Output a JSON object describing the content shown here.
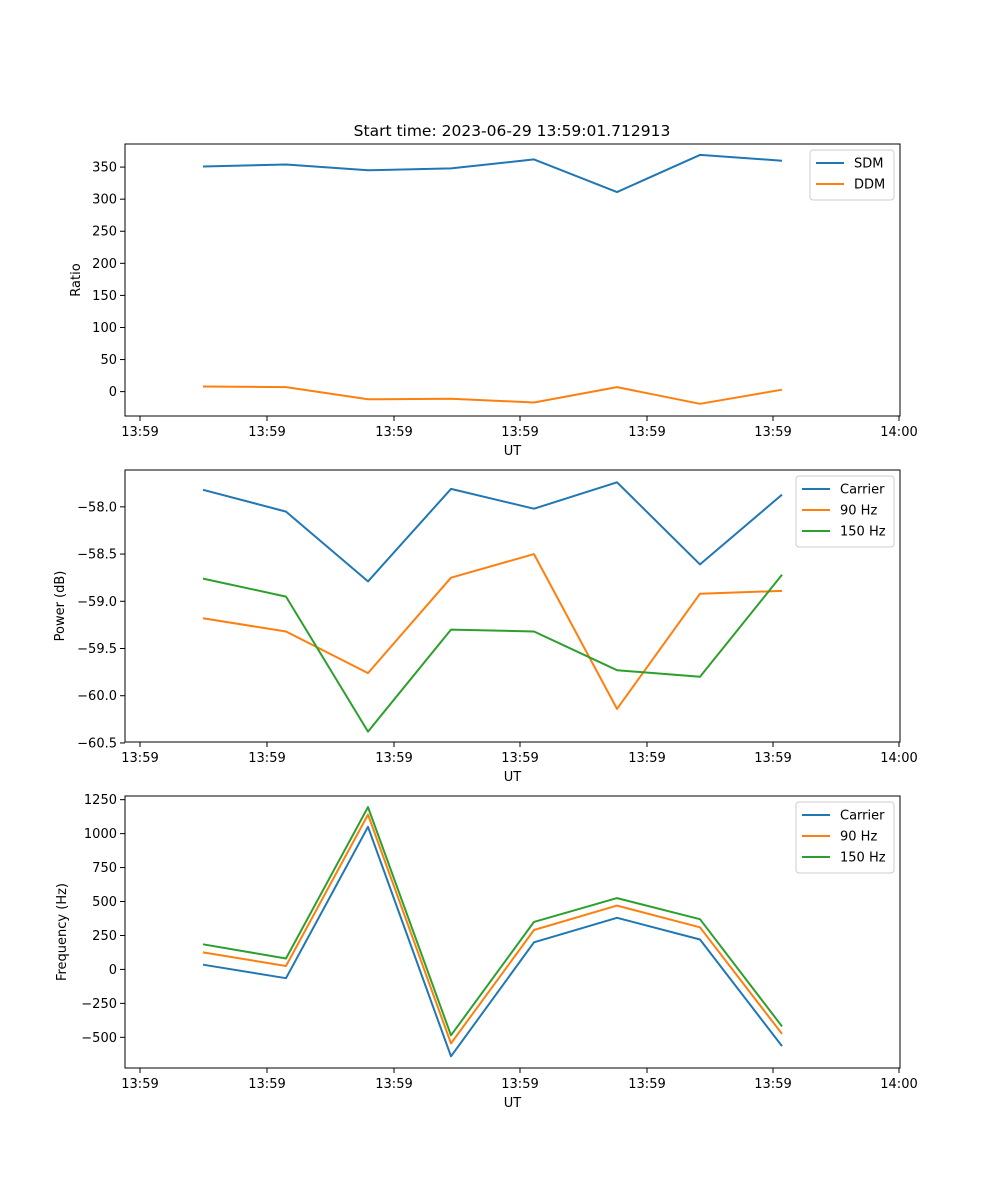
{
  "figure_title": "Start time: 2023-06-29 13:59:01.712913",
  "chart_data": [
    {
      "type": "line",
      "title": "Start time: 2023-06-29 13:59:01.712913",
      "xlabel": "UT",
      "ylabel": "Ratio",
      "x_tick_labels": [
        "13:59",
        "13:59",
        "13:59",
        "13:59",
        "13:59",
        "13:59",
        "14:00"
      ],
      "y_ticks": [
        0,
        50,
        100,
        150,
        200,
        250,
        300,
        350
      ],
      "ylim": [
        -38,
        386
      ],
      "legend_position": "top-right",
      "series": [
        {
          "name": "SDM",
          "color": "#1f77b4",
          "values": [
            351,
            354,
            345,
            348,
            362,
            311,
            369,
            360
          ]
        },
        {
          "name": "DDM",
          "color": "#ff7f0e",
          "values": [
            8,
            7,
            -12,
            -11,
            -17,
            7,
            -19,
            3
          ]
        }
      ]
    },
    {
      "type": "line",
      "xlabel": "UT",
      "ylabel": "Power (dB)",
      "x_tick_labels": [
        "13:59",
        "13:59",
        "13:59",
        "13:59",
        "13:59",
        "13:59",
        "14:00"
      ],
      "y_ticks": [
        -60.5,
        -60.0,
        -59.5,
        -59.0,
        -58.5,
        -58.0
      ],
      "y_tick_labels": [
        "−60.5",
        "−60.0",
        "−59.5",
        "−59.0",
        "−58.5",
        "−58.0"
      ],
      "ylim": [
        -60.49,
        -57.61
      ],
      "legend_position": "top-right",
      "series": [
        {
          "name": "Carrier",
          "color": "#1f77b4",
          "values": [
            -57.82,
            -58.05,
            -58.79,
            -57.81,
            -58.02,
            -57.74,
            -58.61,
            -57.87
          ]
        },
        {
          "name": "90 Hz",
          "color": "#ff7f0e",
          "values": [
            -59.18,
            -59.32,
            -59.76,
            -58.75,
            -58.5,
            -60.14,
            -58.92,
            -58.89
          ]
        },
        {
          "name": "150 Hz",
          "color": "#2ca02c",
          "values": [
            -58.76,
            -58.95,
            -60.38,
            -59.3,
            -59.32,
            -59.73,
            -59.8,
            -58.72
          ]
        }
      ]
    },
    {
      "type": "line",
      "xlabel": "UT",
      "ylabel": "Frequency (Hz)",
      "x_tick_labels": [
        "13:59",
        "13:59",
        "13:59",
        "13:59",
        "13:59",
        "13:59",
        "14:00"
      ],
      "y_ticks": [
        -500,
        -250,
        0,
        250,
        500,
        750,
        1000,
        1250
      ],
      "y_tick_labels": [
        "−500",
        "−250",
        "0",
        "250",
        "500",
        "750",
        "1000",
        "1250"
      ],
      "ylim": [
        -726,
        1277
      ],
      "legend_position": "top-right",
      "series": [
        {
          "name": "Carrier",
          "color": "#1f77b4",
          "values": [
            35,
            -65,
            1050,
            -640,
            200,
            380,
            220,
            -565
          ]
        },
        {
          "name": "90 Hz",
          "color": "#ff7f0e",
          "values": [
            125,
            25,
            1140,
            -545,
            290,
            470,
            310,
            -475
          ]
        },
        {
          "name": "150 Hz",
          "color": "#2ca02c",
          "values": [
            185,
            80,
            1195,
            -485,
            350,
            525,
            370,
            -420
          ]
        }
      ]
    }
  ]
}
